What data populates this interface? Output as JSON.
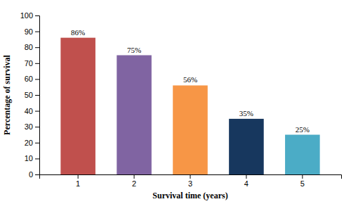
{
  "chart_data": {
    "type": "bar",
    "categories": [
      1,
      2,
      3,
      4,
      5
    ],
    "values": [
      86,
      75,
      56,
      35,
      25
    ],
    "value_labels": [
      "86%",
      "75%",
      "56%",
      "35%",
      "25%"
    ],
    "data_labels": true,
    "colors": [
      "#c0504d",
      "#8064a2",
      "#f79646",
      "#17375e",
      "#4bacc6"
    ],
    "xlabel": "Survival time (years)",
    "ylabel": "Percentage of survival",
    "ylim": [
      0,
      100
    ],
    "yticks": [
      0,
      10,
      20,
      30,
      40,
      50,
      60,
      70,
      80,
      90,
      100
    ],
    "grid": false
  }
}
